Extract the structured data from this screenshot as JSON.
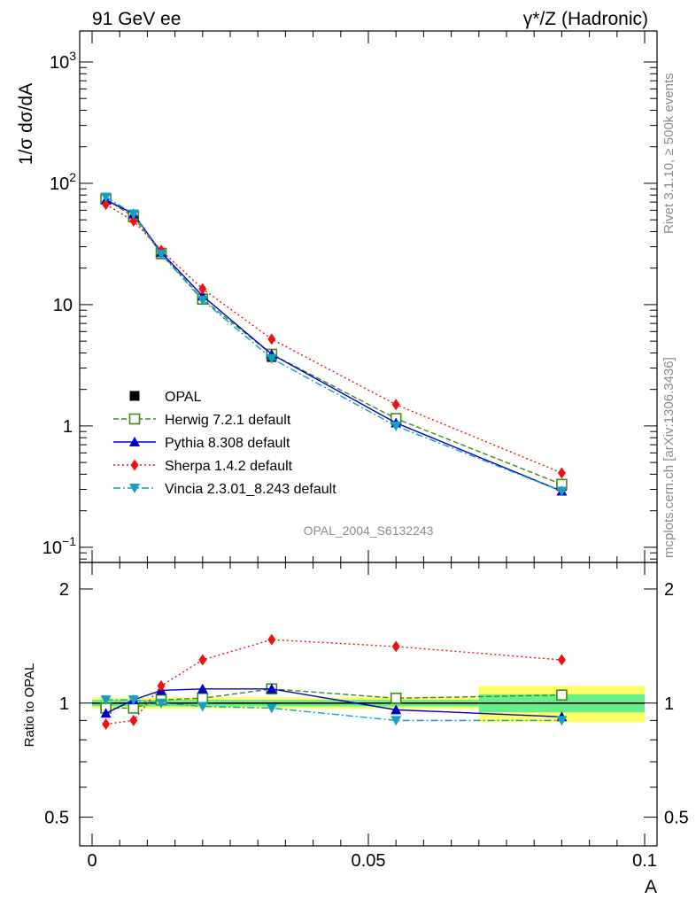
{
  "header": {
    "left_label": "91 GeV ee",
    "right_label": "γ*/Z (Hadronic)"
  },
  "side_labels": {
    "upper": "Rivet 3.1.10, ≥ 500k events",
    "lower": "mcplots.cern.ch [arXiv:1306.3436]"
  },
  "analysis_tag": "OPAL_2004_S6132243",
  "colors": {
    "herwig": "#3c8c14",
    "pythia": "#0000cc",
    "sherpa": "#ee1111",
    "vincia": "#14a0be",
    "data": "#000000",
    "band_inner": "#66ee88",
    "band_outer": "#ffff66"
  },
  "chart_data": [
    {
      "type": "line",
      "title": "",
      "ylabel": "1/σ dσ/dA",
      "yscale": "log",
      "xlim": [
        0,
        0.1
      ],
      "ylim": [
        0.075,
        1800
      ],
      "yticks": [
        {
          "value": 1000,
          "base": "10",
          "exp": "3"
        },
        {
          "value": 100,
          "base": "10",
          "exp": "2"
        },
        {
          "value": 10,
          "base": "10",
          "exp": ""
        },
        {
          "value": 1,
          "base": "1",
          "exp": ""
        },
        {
          "value": 0.1,
          "base": "10",
          "exp": "−1"
        }
      ],
      "legend_position": "lower-left",
      "x": [
        0.0025,
        0.0075,
        0.0125,
        0.02,
        0.0325,
        0.055,
        0.085
      ],
      "series": [
        {
          "name": "OPAL",
          "key": "data",
          "marker": "square",
          "dash": "",
          "values": [
            76,
            55,
            26,
            11,
            3.7,
            1.12,
            0.32
          ]
        },
        {
          "name": "Herwig 7.2.1 default",
          "key": "herwig",
          "marker": "open-square",
          "dash": "6,3",
          "values": [
            74,
            53,
            26.5,
            11.1,
            3.9,
            1.15,
            0.33
          ]
        },
        {
          "name": "Pythia 8.308 default",
          "key": "pythia",
          "marker": "triangle-up",
          "dash": "",
          "values": [
            73,
            56,
            27,
            11.8,
            3.9,
            1.06,
            0.29
          ]
        },
        {
          "name": "Sherpa 1.4.2 default",
          "key": "sherpa",
          "marker": "diamond",
          "dash": "2,3",
          "values": [
            67,
            49,
            28,
            13.5,
            5.2,
            1.5,
            0.41
          ]
        },
        {
          "name": "Vincia 2.3.01_8.243 default",
          "key": "vincia",
          "marker": "triangle-down",
          "dash": "8,3,2,3",
          "values": [
            77,
            56,
            26,
            10.9,
            3.6,
            1.0,
            0.29
          ]
        }
      ]
    },
    {
      "type": "line",
      "title": "",
      "xlabel": "A",
      "ylabel": "Ratio to OPAL",
      "yscale": "log",
      "xlim": [
        0,
        0.1
      ],
      "ylim": [
        0.42,
        2.35
      ],
      "xticks": [
        {
          "value": 0,
          "label": "0"
        },
        {
          "value": 0.05,
          "label": "0.05"
        },
        {
          "value": 0.1,
          "label": "0.1"
        }
      ],
      "yticks": [
        {
          "value": 2,
          "label": "2"
        },
        {
          "value": 1,
          "label": "1"
        },
        {
          "value": 0.5,
          "label": "0.5"
        }
      ],
      "band": [
        {
          "x0": 0,
          "x1": 0.07,
          "outer": 0.035,
          "inner": 0.02
        },
        {
          "x0": 0.07,
          "x1": 0.1,
          "outer": 0.11,
          "inner": 0.055
        }
      ],
      "x": [
        0.0025,
        0.0075,
        0.0125,
        0.02,
        0.0325,
        0.055,
        0.085
      ],
      "series": [
        {
          "name": "Herwig 7.2.1 default",
          "key": "herwig",
          "marker": "open-square",
          "dash": "6,3",
          "values": [
            0.97,
            0.97,
            1.02,
            1.03,
            1.09,
            1.03,
            1.05
          ]
        },
        {
          "name": "Pythia 8.308 default",
          "key": "pythia",
          "marker": "triangle-up",
          "dash": "",
          "values": [
            0.94,
            1.02,
            1.08,
            1.09,
            1.09,
            0.96,
            0.92
          ]
        },
        {
          "name": "Sherpa 1.4.2 default",
          "key": "sherpa",
          "marker": "diamond",
          "dash": "2,3",
          "values": [
            0.88,
            0.9,
            1.11,
            1.3,
            1.47,
            1.41,
            1.3
          ]
        },
        {
          "name": "Vincia 2.3.01_8.243 default",
          "key": "vincia",
          "marker": "triangle-down",
          "dash": "8,3,2,3",
          "values": [
            1.02,
            1.02,
            1.0,
            0.98,
            0.97,
            0.9,
            0.9
          ]
        }
      ]
    }
  ]
}
